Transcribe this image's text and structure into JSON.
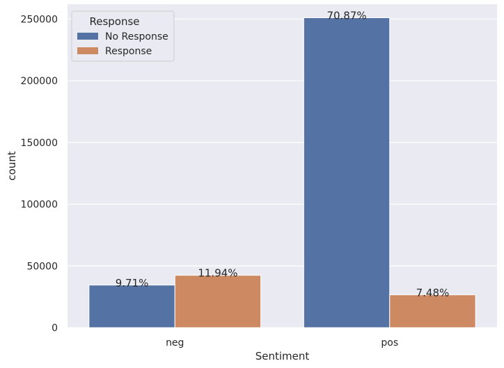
{
  "chart_data": {
    "type": "bar",
    "categories": [
      "neg",
      "pos"
    ],
    "series": [
      {
        "name": "No Response",
        "values": [
          34500,
          251000
        ],
        "labels": [
          "9.71%",
          "70.87%"
        ],
        "color": "#5572a4"
      },
      {
        "name": "Response",
        "values": [
          42400,
          26600
        ],
        "labels": [
          "11.94%",
          "7.48%"
        ],
        "color": "#cc8962"
      }
    ],
    "xlabel": "Sentiment",
    "ylabel": "count",
    "ylim": [
      0,
      262000
    ],
    "yticks": [
      0,
      50000,
      100000,
      150000,
      200000,
      250000
    ],
    "grid": true,
    "background": "#eaeaf2",
    "legend": {
      "title": "Response",
      "position": "top-left"
    }
  }
}
